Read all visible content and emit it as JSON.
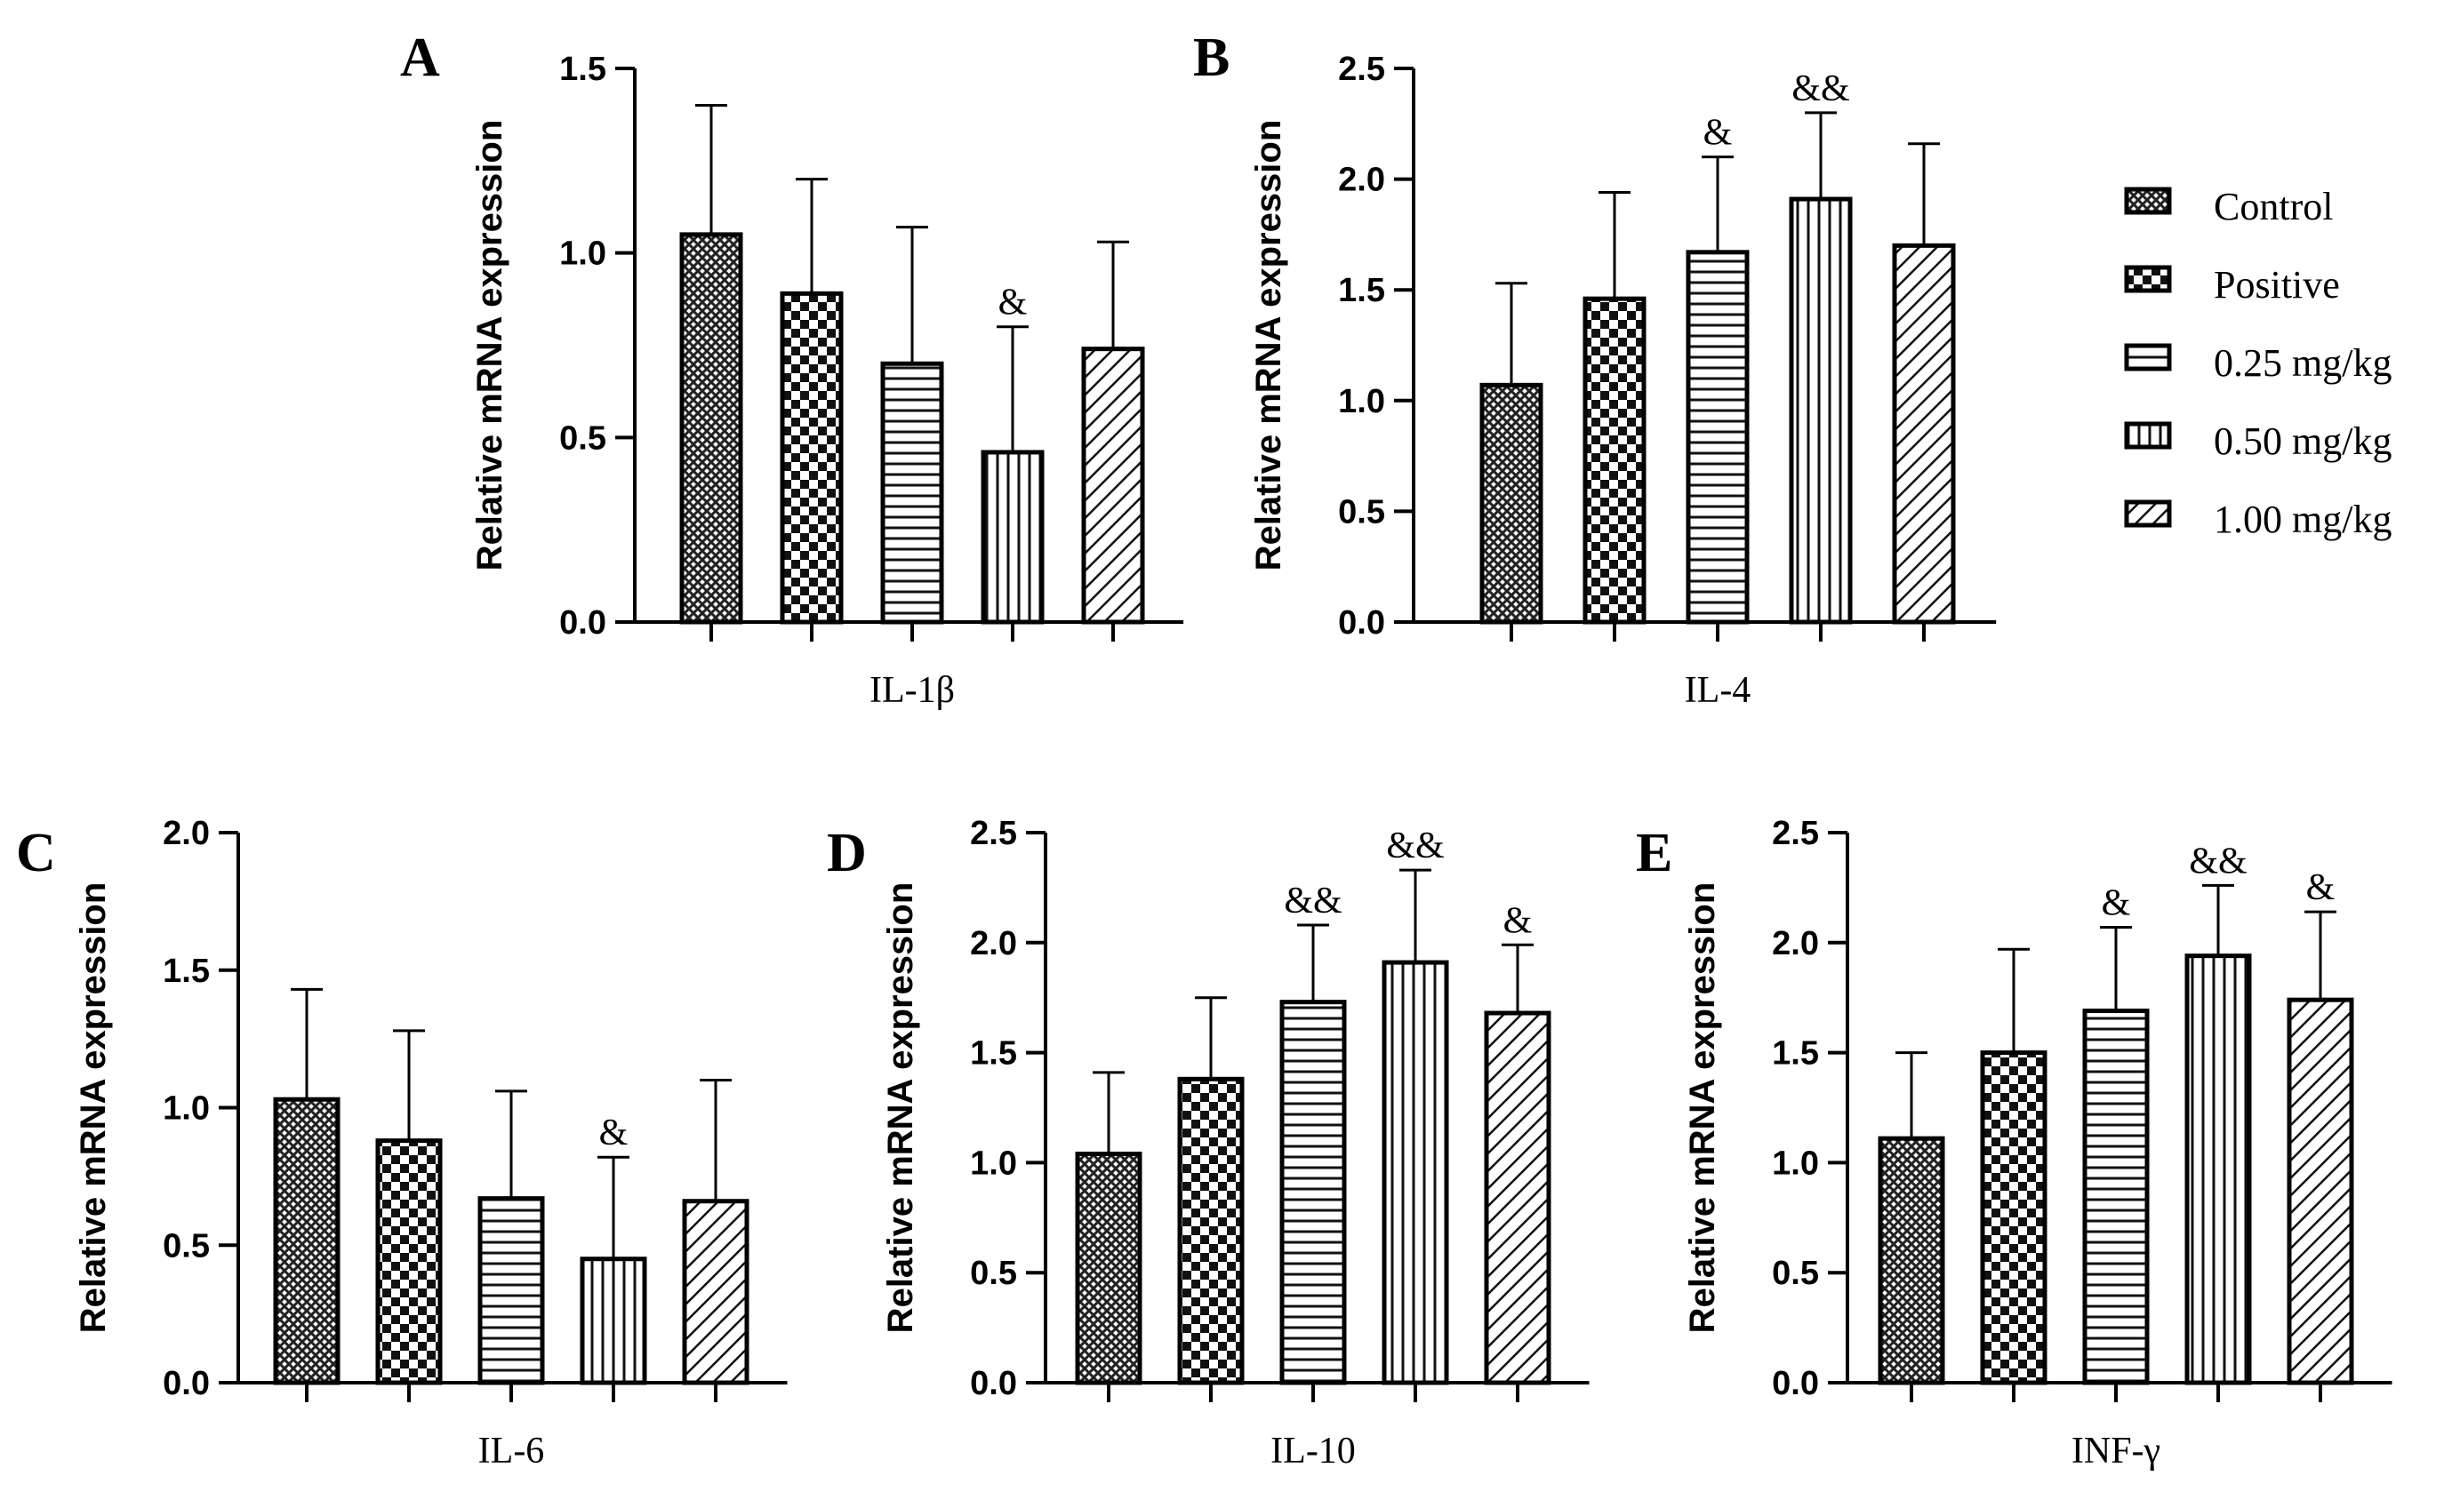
{
  "chart_data": [
    {
      "panel": "A",
      "type": "bar",
      "xlabel": "IL-1β",
      "ylabel": "Relative mRNA expression",
      "ylim": [
        0,
        1.5
      ],
      "yticks": [
        "0.0",
        "0.5",
        "1.0",
        "1.5"
      ],
      "categories": [
        "Control",
        "Positive",
        "0.25 mg/kg",
        "0.50 mg/kg",
        "1.00 mg/kg"
      ],
      "values": [
        1.05,
        0.89,
        0.7,
        0.46,
        0.74
      ],
      "errors": [
        0.35,
        0.31,
        0.37,
        0.34,
        0.29
      ],
      "significance": [
        "",
        "",
        "",
        "&",
        ""
      ]
    },
    {
      "panel": "B",
      "type": "bar",
      "xlabel": "IL-4",
      "ylabel": "Relative mRNA expression",
      "ylim": [
        0,
        2.5
      ],
      "yticks": [
        "0.0",
        "0.5",
        "1.0",
        "1.5",
        "2.0",
        "2.5"
      ],
      "categories": [
        "Control",
        "Positive",
        "0.25 mg/kg",
        "0.50 mg/kg",
        "1.00 mg/kg"
      ],
      "values": [
        1.07,
        1.46,
        1.67,
        1.91,
        1.7
      ],
      "errors": [
        0.46,
        0.48,
        0.43,
        0.39,
        0.46
      ],
      "significance": [
        "",
        "",
        "&",
        "&&",
        ""
      ]
    },
    {
      "panel": "C",
      "type": "bar",
      "xlabel": "IL-6",
      "ylabel": "Relative mRNA expression",
      "ylim": [
        0,
        2.0
      ],
      "yticks": [
        "0.0",
        "0.5",
        "1.0",
        "1.5",
        "2.0"
      ],
      "categories": [
        "Control",
        "Positive",
        "0.25 mg/kg",
        "0.50 mg/kg",
        "1.00 mg/kg"
      ],
      "values": [
        1.03,
        0.88,
        0.67,
        0.45,
        0.66
      ],
      "errors": [
        0.4,
        0.4,
        0.39,
        0.37,
        0.44
      ],
      "significance": [
        "",
        "",
        "",
        "&",
        ""
      ]
    },
    {
      "panel": "D",
      "type": "bar",
      "xlabel": "IL-10",
      "ylabel": "Relative mRNA expression",
      "ylim": [
        0,
        2.5
      ],
      "yticks": [
        "0.0",
        "0.5",
        "1.0",
        "1.5",
        "2.0",
        "2.5"
      ],
      "categories": [
        "Control",
        "Positive",
        "0.25 mg/kg",
        "0.50 mg/kg",
        "1.00 mg/kg"
      ],
      "values": [
        1.04,
        1.38,
        1.73,
        1.91,
        1.68
      ],
      "errors": [
        0.37,
        0.37,
        0.35,
        0.42,
        0.31
      ],
      "significance": [
        "",
        "",
        "&&",
        "&&",
        "&"
      ]
    },
    {
      "panel": "E",
      "type": "bar",
      "xlabel": "INF-γ",
      "ylabel": "Relative mRNA expression",
      "ylim": [
        0,
        2.5
      ],
      "yticks": [
        "0.0",
        "0.5",
        "1.0",
        "1.5",
        "2.0",
        "2.5"
      ],
      "categories": [
        "Control",
        "Positive",
        "0.25 mg/kg",
        "0.50 mg/kg",
        "1.00 mg/kg"
      ],
      "values": [
        1.11,
        1.5,
        1.69,
        1.94,
        1.74
      ],
      "errors": [
        0.39,
        0.47,
        0.38,
        0.32,
        0.4
      ],
      "significance": [
        "",
        "",
        "&",
        "&&",
        "&"
      ]
    }
  ],
  "legend": {
    "entries": [
      "Control",
      "Positive",
      "0.25 mg/kg",
      "0.50 mg/kg",
      "1.00 mg/kg"
    ],
    "patterns": [
      "cross-hatch",
      "checker",
      "horizontal-lines",
      "vertical-lines",
      "diagonal-lines"
    ]
  }
}
